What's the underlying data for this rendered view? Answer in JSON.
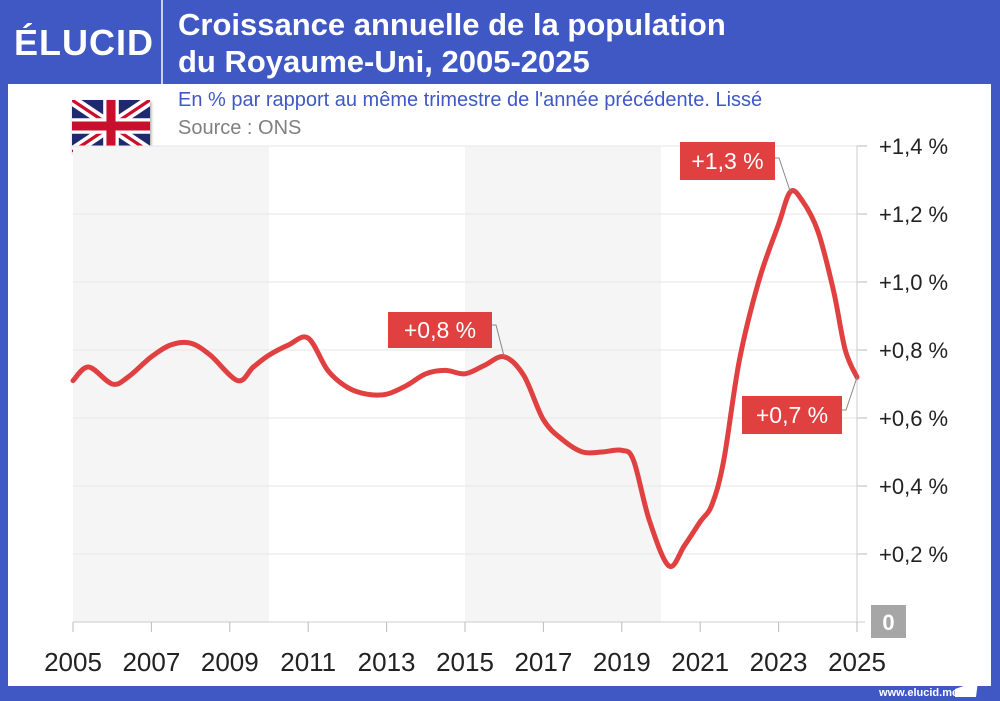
{
  "header": {
    "logo": "ÉLUCID",
    "title_line1": "Croissance annuelle de la population",
    "title_line2": "du Royaume-Uni, 2005-2025",
    "subtitle": "En % par rapport au même trimestre de l'année précédente. Lissé",
    "source": "Source : ONS",
    "flag_icon": "united-kingdom-flag"
  },
  "footer": {
    "url": "www.elucid.media"
  },
  "colors": {
    "brand": "#3f58c4",
    "line": "#e04040",
    "label_bg": "#e04040",
    "band": "#f5f5f5",
    "zero_badge": "#a6a6a6"
  },
  "chart_data": {
    "type": "line",
    "title": "Croissance annuelle de la population du Royaume-Uni, 2005-2025",
    "xlim": [
      2005,
      2025
    ],
    "ylim": [
      0,
      1.4
    ],
    "x_ticks": [
      "2005",
      "2007",
      "2009",
      "2011",
      "2013",
      "2015",
      "2017",
      "2019",
      "2021",
      "2023",
      "2025"
    ],
    "y_ticks": [
      {
        "v": 0.2,
        "label": "+0,2 %"
      },
      {
        "v": 0.4,
        "label": "+0,4 %"
      },
      {
        "v": 0.6,
        "label": "+0,6 %"
      },
      {
        "v": 0.8,
        "label": "+0,8 %"
      },
      {
        "v": 1.0,
        "label": "+1,0 %"
      },
      {
        "v": 1.2,
        "label": "+1,2 %"
      },
      {
        "v": 1.4,
        "label": "+1,4 %"
      }
    ],
    "zero_label": "0",
    "grid": true,
    "shaded_bands": [
      [
        2005,
        2010
      ],
      [
        2015,
        2020
      ]
    ],
    "series": [
      {
        "x": [
          2005,
          2005.4,
          2006,
          2006.4,
          2007,
          2007.5,
          2008,
          2008.5,
          2009.2,
          2009.6,
          2010,
          2010.5,
          2011,
          2011.5,
          2012,
          2012.5,
          2013,
          2013.5,
          2014,
          2014.5,
          2015,
          2015.5,
          2016,
          2016.5,
          2017,
          2017.5,
          2018,
          2018.5,
          2019,
          2019.3,
          2019.7,
          2020.2,
          2020.6,
          2021,
          2021.3,
          2021.6,
          2022,
          2022.5,
          2023,
          2023.3,
          2023.6,
          2024,
          2024.4,
          2024.7,
          2025
        ],
        "y": [
          0.71,
          0.75,
          0.7,
          0.72,
          0.78,
          0.815,
          0.82,
          0.785,
          0.71,
          0.75,
          0.785,
          0.815,
          0.835,
          0.74,
          0.69,
          0.67,
          0.67,
          0.695,
          0.73,
          0.74,
          0.73,
          0.755,
          0.78,
          0.725,
          0.595,
          0.535,
          0.5,
          0.5,
          0.505,
          0.475,
          0.3,
          0.165,
          0.225,
          0.295,
          0.345,
          0.475,
          0.77,
          1.005,
          1.17,
          1.265,
          1.24,
          1.15,
          0.975,
          0.8,
          0.72
        ]
      }
    ],
    "annotations": [
      {
        "text": "+0,8 %",
        "x": 2016,
        "y": 0.78
      },
      {
        "text": "+1,3 %",
        "x": 2023.3,
        "y": 1.265
      },
      {
        "text": "+0,7 %",
        "x": 2025,
        "y": 0.72
      }
    ]
  }
}
